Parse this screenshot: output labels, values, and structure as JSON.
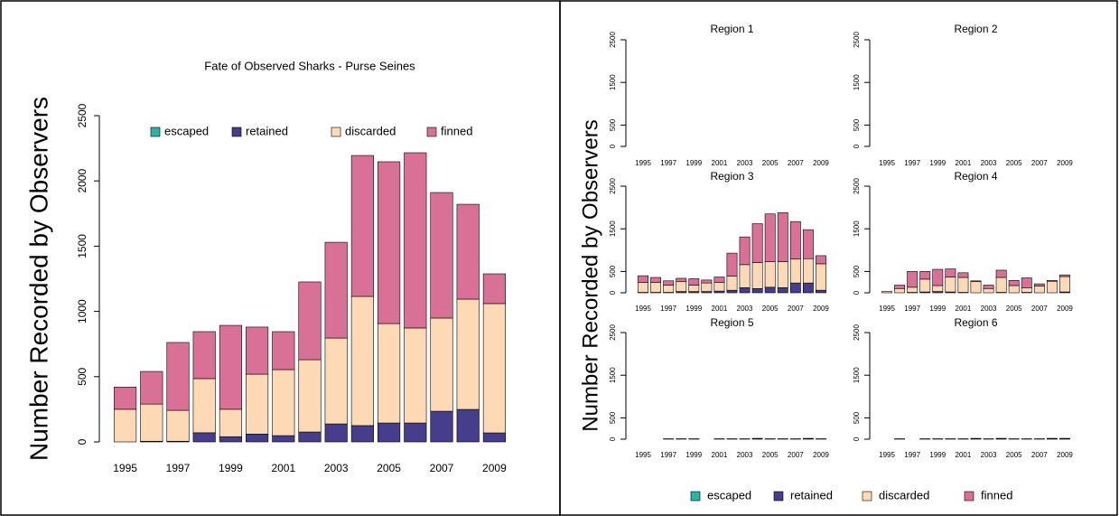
{
  "chart_data": [
    {
      "type": "stacked_bar",
      "title": "Fate of Observed Sharks - Purse Seines",
      "ylabel": "Number Recorded by Observers",
      "legend": "top",
      "categories": [
        "1995",
        null,
        "1997",
        null,
        "1999",
        null,
        "2001",
        null,
        "2003",
        null,
        "2005",
        null,
        "2007",
        null,
        "2009"
      ],
      "ylim": [
        0,
        2500
      ],
      "yticks": [
        0,
        500,
        1000,
        1500,
        2000,
        2500
      ],
      "series": [
        {
          "name": "escaped",
          "color": "#2ab3a6",
          "values": [
            0,
            0,
            0,
            0,
            0,
            0,
            0,
            0,
            0,
            0,
            0,
            0,
            0,
            0,
            0
          ]
        },
        {
          "name": "retained",
          "color": "#463d8c",
          "values": [
            0,
            5,
            5,
            70,
            40,
            60,
            48,
            76,
            138,
            125,
            145,
            145,
            235,
            249,
            69
          ]
        },
        {
          "name": "discarded",
          "color": "#fdd9b5",
          "values": [
            250,
            285,
            237,
            415,
            210,
            459,
            506,
            554,
            658,
            990,
            762,
            728,
            714,
            845,
            991
          ]
        },
        {
          "name": "finned",
          "color": "#d97095",
          "values": [
            170,
            250,
            520,
            360,
            643,
            361,
            291,
            596,
            734,
            1080,
            1240,
            1343,
            962,
            727,
            228
          ]
        }
      ]
    },
    {
      "type": "stacked_bar",
      "title": "Region  1",
      "ylabel": "Number Recorded by Observers",
      "categories": [
        "1995",
        null,
        "1997",
        null,
        "1999",
        null,
        "2001",
        null,
        "2003",
        null,
        "2005",
        null,
        "2007",
        null,
        "2009"
      ],
      "ylim": [
        0,
        2500
      ],
      "yticks": [
        0,
        500,
        1500,
        2500
      ],
      "series": [
        {
          "name": "escaped",
          "color": "#2ab3a6",
          "values": [
            0,
            0,
            0,
            0,
            0,
            0,
            0,
            0,
            0,
            0,
            0,
            0,
            0,
            0,
            0
          ]
        },
        {
          "name": "retained",
          "color": "#463d8c",
          "values": [
            0,
            0,
            0,
            0,
            0,
            0,
            0,
            0,
            0,
            0,
            0,
            0,
            0,
            0,
            0
          ]
        },
        {
          "name": "discarded",
          "color": "#fdd9b5",
          "values": [
            0,
            0,
            0,
            0,
            0,
            0,
            0,
            0,
            0,
            0,
            0,
            0,
            0,
            0,
            0
          ]
        },
        {
          "name": "finned",
          "color": "#d97095",
          "values": [
            0,
            0,
            0,
            0,
            0,
            0,
            0,
            0,
            0,
            0,
            0,
            0,
            0,
            0,
            0
          ]
        }
      ]
    },
    {
      "type": "stacked_bar",
      "title": "Region  2",
      "categories": [
        "1995",
        null,
        "1997",
        null,
        "1999",
        null,
        "2001",
        null,
        "2003",
        null,
        "2005",
        null,
        "2007",
        null,
        "2009"
      ],
      "ylim": [
        0,
        2500
      ],
      "yticks": [
        0,
        500,
        1500,
        2500
      ],
      "series": [
        {
          "name": "escaped",
          "color": "#2ab3a6",
          "values": [
            0,
            0,
            0,
            0,
            0,
            0,
            0,
            0,
            0,
            0,
            0,
            0,
            0,
            0,
            0
          ]
        },
        {
          "name": "retained",
          "color": "#463d8c",
          "values": [
            0,
            0,
            0,
            0,
            0,
            0,
            0,
            0,
            0,
            0,
            0,
            0,
            0,
            0,
            0
          ]
        },
        {
          "name": "discarded",
          "color": "#fdd9b5",
          "values": [
            0,
            0,
            0,
            0,
            0,
            0,
            0,
            0,
            0,
            0,
            0,
            0,
            0,
            0,
            0
          ]
        },
        {
          "name": "finned",
          "color": "#d97095",
          "values": [
            0,
            0,
            0,
            0,
            0,
            0,
            0,
            0,
            0,
            0,
            0,
            0,
            0,
            0,
            0
          ]
        }
      ]
    },
    {
      "type": "stacked_bar",
      "title": "Region  3",
      "categories": [
        "1995",
        null,
        "1997",
        null,
        "1999",
        null,
        "2001",
        null,
        "2003",
        null,
        "2005",
        null,
        "2007",
        null,
        "2009"
      ],
      "ylim": [
        0,
        2500
      ],
      "yticks": [
        0,
        500,
        1500,
        2500
      ],
      "series": [
        {
          "name": "escaped",
          "color": "#2ab3a6",
          "values": [
            0,
            0,
            0,
            0,
            0,
            0,
            0,
            0,
            0,
            0,
            0,
            0,
            0,
            0,
            0
          ]
        },
        {
          "name": "retained",
          "color": "#463d8c",
          "values": [
            10,
            10,
            10,
            30,
            30,
            30,
            40,
            60,
            120,
            100,
            130,
            120,
            230,
            230,
            60
          ]
        },
        {
          "name": "discarded",
          "color": "#fdd9b5",
          "values": [
            230,
            230,
            170,
            230,
            150,
            200,
            200,
            330,
            540,
            610,
            600,
            610,
            560,
            570,
            620
          ]
        },
        {
          "name": "finned",
          "color": "#d97095",
          "values": [
            160,
            120,
            100,
            80,
            150,
            70,
            130,
            540,
            650,
            910,
            1120,
            1150,
            880,
            680,
            190
          ]
        }
      ]
    },
    {
      "type": "stacked_bar",
      "title": "Region  4",
      "categories": [
        "1995",
        null,
        "1997",
        null,
        "1999",
        null,
        "2001",
        null,
        "2003",
        null,
        "2005",
        null,
        "2007",
        null,
        "2009"
      ],
      "ylim": [
        0,
        2500
      ],
      "yticks": [
        0,
        500,
        1500,
        2500
      ],
      "series": [
        {
          "name": "escaped",
          "color": "#2ab3a6",
          "values": [
            0,
            0,
            0,
            0,
            0,
            0,
            0,
            0,
            0,
            0,
            0,
            0,
            0,
            0,
            0
          ]
        },
        {
          "name": "retained",
          "color": "#463d8c",
          "values": [
            0,
            0,
            10,
            20,
            30,
            20,
            10,
            0,
            0,
            10,
            0,
            10,
            0,
            0,
            20
          ]
        },
        {
          "name": "discarded",
          "color": "#fdd9b5",
          "values": [
            30,
            100,
            120,
            300,
            140,
            350,
            350,
            260,
            100,
            350,
            170,
            110,
            160,
            270,
            360
          ]
        },
        {
          "name": "finned",
          "color": "#d97095",
          "values": [
            0,
            80,
            370,
            180,
            380,
            190,
            110,
            20,
            80,
            170,
            120,
            230,
            50,
            20,
            40
          ]
        }
      ]
    },
    {
      "type": "stacked_bar",
      "title": "Region  5",
      "categories": [
        "1995",
        null,
        "1997",
        null,
        "1999",
        null,
        "2001",
        null,
        "2003",
        null,
        "2005",
        null,
        "2007",
        null,
        "2009"
      ],
      "ylim": [
        0,
        2500
      ],
      "yticks": [
        0,
        500,
        1500,
        2500
      ],
      "series": [
        {
          "name": "escaped",
          "color": "#2ab3a6",
          "values": [
            0,
            0,
            0,
            0,
            0,
            0,
            0,
            0,
            0,
            0,
            0,
            0,
            0,
            0,
            0
          ]
        },
        {
          "name": "retained",
          "color": "#463d8c",
          "values": [
            0,
            0,
            5,
            5,
            5,
            0,
            5,
            5,
            5,
            10,
            5,
            5,
            5,
            10,
            5
          ]
        },
        {
          "name": "discarded",
          "color": "#fdd9b5",
          "values": [
            0,
            0,
            5,
            5,
            5,
            0,
            5,
            5,
            5,
            10,
            5,
            5,
            5,
            10,
            5
          ]
        },
        {
          "name": "finned",
          "color": "#d97095",
          "values": [
            0,
            0,
            0,
            0,
            0,
            0,
            0,
            0,
            0,
            0,
            0,
            0,
            0,
            0,
            0
          ]
        }
      ]
    },
    {
      "type": "stacked_bar",
      "title": "Region  6",
      "categories": [
        "1995",
        null,
        "1997",
        null,
        "1999",
        null,
        "2001",
        null,
        "2003",
        null,
        "2005",
        null,
        "2007",
        null,
        "2009"
      ],
      "ylim": [
        0,
        2500
      ],
      "yticks": [
        0,
        500,
        1500,
        2500
      ],
      "series": [
        {
          "name": "escaped",
          "color": "#2ab3a6",
          "values": [
            0,
            0,
            0,
            0,
            0,
            0,
            0,
            0,
            0,
            0,
            0,
            0,
            0,
            0,
            0
          ]
        },
        {
          "name": "retained",
          "color": "#463d8c",
          "values": [
            0,
            5,
            0,
            5,
            5,
            5,
            5,
            10,
            5,
            10,
            5,
            5,
            5,
            10,
            10
          ]
        },
        {
          "name": "discarded",
          "color": "#fdd9b5",
          "values": [
            0,
            5,
            0,
            5,
            5,
            5,
            5,
            10,
            5,
            10,
            5,
            5,
            5,
            10,
            10
          ]
        },
        {
          "name": "finned",
          "color": "#d97095",
          "values": [
            0,
            0,
            0,
            0,
            0,
            0,
            0,
            0,
            0,
            0,
            0,
            0,
            0,
            0,
            0
          ]
        }
      ]
    }
  ]
}
